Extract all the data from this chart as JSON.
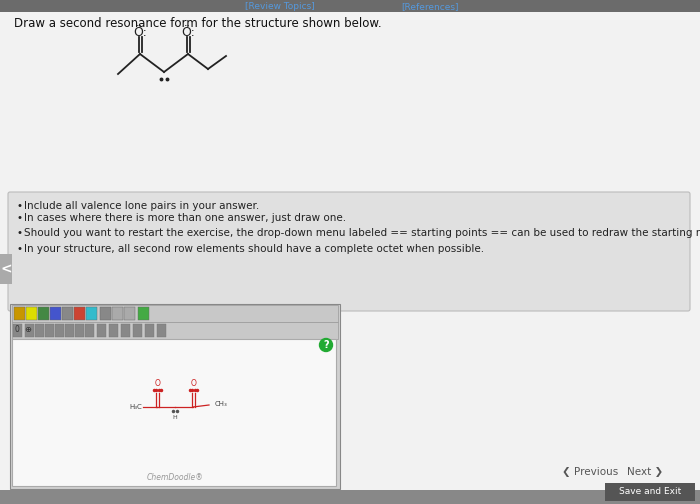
{
  "bg_color": "#c8c8c8",
  "page_bg": "#f2f2f2",
  "header_bar_color": "#6b6b6b",
  "header_link1": "[Review Topics]",
  "header_link2": "[References]",
  "header_link_color": "#5599dd",
  "title": "Draw a second resonance form for the structure shown below.",
  "title_color": "#111111",
  "title_fontsize": 8.5,
  "bullet_points": [
    "Include all valence lone pairs in your answer.",
    "In cases where there is more than one answer, just draw one.",
    "Should you want to restart the exercise, the drop-down menu labeled == starting points == can be used to redraw the starting molecule on the sketcher.",
    "In your structure, all second row elements should have a complete octet when possible."
  ],
  "bullet_fontsize": 7.5,
  "bullet_color": "#222222",
  "info_box_bg": "#e0e0e0",
  "info_box_border": "#bbbbbb",
  "sketcher_outer_bg": "#d8d8d8",
  "sketcher_canvas_bg": "#f8f8f8",
  "sketcher_canvas_border": "#aaaaaa",
  "toolbar_bg": "#cccccc",
  "toolbar_border": "#999999",
  "chemdoodle_text": "ChemDoodle®",
  "prev_next_color": "#555555",
  "save_exit_bg": "#555555",
  "save_exit_text_color": "#ffffff",
  "left_arrow_color": "#777777",
  "mol_line_color": "#222222",
  "mol_red_color": "#cc2222",
  "green_circle_color": "#22aa33",
  "bottom_bar_color": "#888888"
}
